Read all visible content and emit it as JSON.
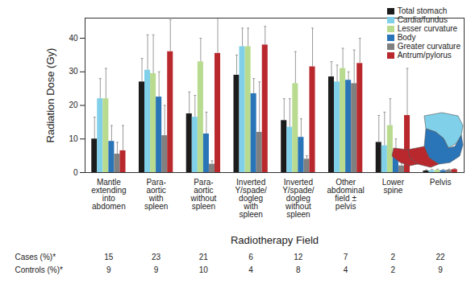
{
  "chart_data": {
    "type": "bar",
    "categories": [
      "Mantle\nextending\ninto\nabdomen",
      "Para-\naortic\nwith\nspleen",
      "Para-\naortic\nwithout\nspleen",
      "Inverted\nY/spade/\ndogleg\nwith\nspleen",
      "Inverted\nY/spade/\ndogleg\nwithout\nspleen",
      "Other\nabdominal\nfield ±\npelvis",
      "Lower\nspine",
      "Pelvis"
    ],
    "series": [
      {
        "name": "Total stomach",
        "color": "#1c1c1c",
        "values": [
          10,
          27,
          17.5,
          29,
          15.5,
          28.5,
          9,
          0.5
        ],
        "errors": [
          6.5,
          7,
          6.5,
          6,
          6.5,
          4.5,
          8,
          0.3
        ]
      },
      {
        "name": "Cardia/fundus",
        "color": "#7fd0e8",
        "values": [
          22,
          30.5,
          16.5,
          37.5,
          13.5,
          27,
          8,
          0.6
        ],
        "errors": [
          6,
          10.5,
          6.5,
          5.5,
          8.5,
          5,
          10,
          0.3
        ]
      },
      {
        "name": "Lesser curvature",
        "color": "#b8db8f",
        "values": [
          22,
          29.5,
          33,
          37.5,
          26.5,
          31,
          14,
          0.7
        ],
        "errors": [
          9,
          11.5,
          7,
          5.5,
          9.5,
          6,
          8,
          0.3
        ]
      },
      {
        "name": "Body",
        "color": "#2a74b8",
        "values": [
          9.3,
          22.5,
          11.5,
          23.5,
          10.5,
          27.5,
          6,
          0.6
        ],
        "errors": [
          4.7,
          7.5,
          6.5,
          4.5,
          5.5,
          2.5,
          4,
          0.3
        ]
      },
      {
        "name": "Greater curvature",
        "color": "#808080",
        "values": [
          5.5,
          11,
          2.5,
          12,
          4,
          26.5,
          2,
          0.7
        ],
        "errors": [
          3.5,
          9,
          1,
          15,
          1,
          10,
          1.5,
          0.3
        ]
      },
      {
        "name": "Antrum/pylorus",
        "color": "#b8282d",
        "values": [
          6.5,
          36,
          35.5,
          38,
          31.5,
          32.5,
          17,
          0.9
        ],
        "errors": [
          7.5,
          9.5,
          10.5,
          5.5,
          11.5,
          7.5,
          14,
          0.3
        ]
      }
    ],
    "ylabel": "Radiation Dose (Gy)",
    "xlabel": "Radiotherapy Field",
    "ylim": [
      0,
      46
    ],
    "yticks": [
      0,
      10,
      20,
      30,
      40
    ],
    "legend": "top-right",
    "table": {
      "rows": [
        {
          "label": "Cases (%)*",
          "values": [
            15,
            23,
            21,
            6,
            12,
            7,
            2,
            22
          ]
        },
        {
          "label": "Controls (%)*",
          "values": [
            9,
            9,
            10,
            4,
            8,
            4,
            2,
            9
          ]
        }
      ]
    }
  }
}
